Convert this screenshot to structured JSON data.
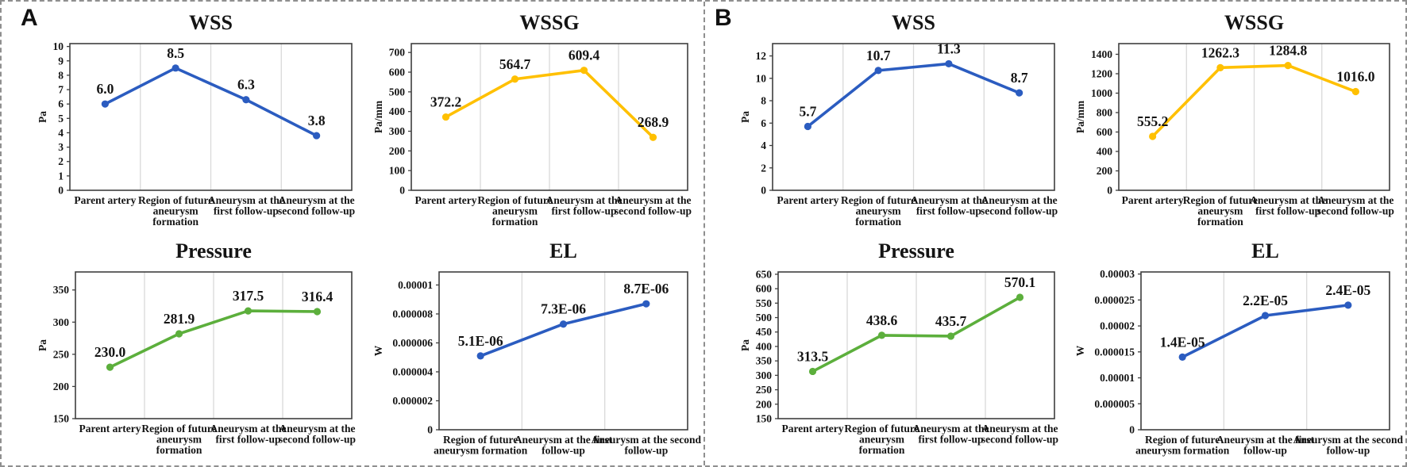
{
  "figure": {
    "panel_labels": [
      "A",
      "B"
    ],
    "border_color": "#8f8f8f",
    "background": "#ffffff",
    "frame_color": "#3f3f3f",
    "gridline_color": "#d9d9d9",
    "colors": {
      "blue": "#2B5CC0",
      "yellow": "#FFC000",
      "green": "#5CAF3C"
    }
  },
  "chart_data": [
    {
      "panel": "A",
      "type": "line",
      "title": "WSS",
      "ylabel": "Pa",
      "line_color": "#2B5CC0",
      "categories": [
        [
          "Parent artery"
        ],
        [
          "Region of future",
          "aneurysm",
          "formation"
        ],
        [
          "Aneurysm at the",
          "first follow-up"
        ],
        [
          "Aneurysm at the",
          "second follow-up"
        ]
      ],
      "values": [
        6.0,
        8.5,
        6.3,
        3.8
      ],
      "point_labels": [
        "6.0",
        "8.5",
        "6.3",
        "3.8"
      ],
      "yticks": [
        0,
        1,
        2,
        3,
        4,
        5,
        6,
        7,
        8,
        9,
        10
      ],
      "ytick_labels": [
        "0",
        "1",
        "2",
        "3",
        "4",
        "5",
        "6",
        "7",
        "8",
        "9",
        "10"
      ],
      "ylim": [
        0,
        10.2
      ],
      "grid": "vertical-category-separators",
      "legend": "none"
    },
    {
      "panel": "A",
      "type": "line",
      "title": "WSSG",
      "ylabel": "Pa/mm",
      "line_color": "#FFC000",
      "categories": [
        [
          "Parent artery"
        ],
        [
          "Region of future",
          "aneurysm",
          "formation"
        ],
        [
          "Aneurysm at the",
          "first follow-up"
        ],
        [
          "Aneurysm at the",
          "second follow-up"
        ]
      ],
      "values": [
        372.2,
        564.7,
        609.4,
        268.9
      ],
      "point_labels": [
        "372.2",
        "564.7",
        "609.4",
        "268.9"
      ],
      "yticks": [
        0,
        100,
        200,
        300,
        400,
        500,
        600,
        700
      ],
      "ytick_labels": [
        "0",
        "100",
        "200",
        "300",
        "400",
        "500",
        "600",
        "700"
      ],
      "ylim": [
        0,
        745
      ],
      "grid": "vertical-category-separators",
      "legend": "none"
    },
    {
      "panel": "A",
      "type": "line",
      "title": "Pressure",
      "ylabel": "Pa",
      "line_color": "#5CAF3C",
      "categories": [
        [
          "Parent artery"
        ],
        [
          "Region of future",
          "aneurysm",
          "formation"
        ],
        [
          "Aneurysm at the",
          "first follow-up"
        ],
        [
          "Aneurysm at the",
          "second follow-up"
        ]
      ],
      "values": [
        230.0,
        281.9,
        317.5,
        316.4
      ],
      "point_labels": [
        "230.0",
        "281.9",
        "317.5",
        "316.4"
      ],
      "yticks": [
        150,
        200,
        250,
        300,
        350
      ],
      "ytick_labels": [
        "150",
        "200",
        "250",
        "300",
        "350"
      ],
      "ylim": [
        150,
        378
      ],
      "grid": "vertical-category-separators",
      "legend": "none"
    },
    {
      "panel": "A",
      "type": "line",
      "title": "EL",
      "ylabel": "W",
      "line_color": "#2B5CC0",
      "categories": [
        [
          "Region of future",
          "aneurysm formation"
        ],
        [
          "Aneurysm at the first",
          "follow-up"
        ],
        [
          "Aneurysm at the second",
          "follow-up"
        ]
      ],
      "values": [
        5.1e-06,
        7.3e-06,
        8.7e-06
      ],
      "point_labels": [
        "5.1E-06",
        "7.3E-06",
        "8.7E-06"
      ],
      "yticks": [
        0,
        2e-06,
        4e-06,
        6e-06,
        8e-06,
        1e-05
      ],
      "ytick_labels": [
        "0",
        "0.000002",
        "0.000004",
        "0.000006",
        "0.000008",
        "0.00001"
      ],
      "ylim": [
        0,
        1.09e-05
      ],
      "grid": "vertical-category-separators",
      "legend": "none"
    },
    {
      "panel": "B",
      "type": "line",
      "title": "WSS",
      "ylabel": "Pa",
      "line_color": "#2B5CC0",
      "categories": [
        [
          "Parent artery"
        ],
        [
          "Region of future",
          "aneurysm",
          "formation"
        ],
        [
          "Aneurysm at the",
          "first follow-up"
        ],
        [
          "Aneurysm at the",
          "second follow-up"
        ]
      ],
      "values": [
        5.7,
        10.7,
        11.3,
        8.7
      ],
      "point_labels": [
        "5.7",
        "10.7",
        "11.3",
        "8.7"
      ],
      "yticks": [
        0,
        2,
        4,
        6,
        8,
        10,
        12
      ],
      "ytick_labels": [
        "0",
        "2",
        "4",
        "6",
        "8",
        "10",
        "12"
      ],
      "ylim": [
        0,
        13.1
      ],
      "grid": "vertical-category-separators",
      "legend": "none"
    },
    {
      "panel": "B",
      "type": "line",
      "title": "WSSG",
      "ylabel": "Pa/mm",
      "line_color": "#FFC000",
      "categories": [
        [
          "Parent artery"
        ],
        [
          "Region of future",
          "aneurysm",
          "formation"
        ],
        [
          "Aneurysm at the",
          "first follow-up"
        ],
        [
          "Aneurysm at the",
          "second follow-up"
        ]
      ],
      "values": [
        555.2,
        1262.3,
        1284.8,
        1016.0
      ],
      "point_labels": [
        "555.2",
        "1262.3",
        "1284.8",
        "1016.0"
      ],
      "yticks": [
        0,
        200,
        400,
        600,
        800,
        1000,
        1200,
        1400
      ],
      "ytick_labels": [
        "0",
        "200",
        "400",
        "600",
        "800",
        "1000",
        "1200",
        "1400"
      ],
      "ylim": [
        0,
        1510
      ],
      "grid": "vertical-category-separators",
      "legend": "none"
    },
    {
      "panel": "B",
      "type": "line",
      "title": "Pressure",
      "ylabel": "Pa",
      "line_color": "#5CAF3C",
      "categories": [
        [
          "Parent artery"
        ],
        [
          "Region of future",
          "aneurysm",
          "formation"
        ],
        [
          "Aneurysm at the",
          "first follow-up"
        ],
        [
          "Aneurysm at the",
          "second follow-up"
        ]
      ],
      "values": [
        313.5,
        438.6,
        435.7,
        570.1
      ],
      "point_labels": [
        "313.5",
        "438.6",
        "435.7",
        "570.1"
      ],
      "yticks": [
        150,
        200,
        250,
        300,
        350,
        400,
        450,
        500,
        550,
        600,
        650
      ],
      "ytick_labels": [
        "150",
        "200",
        "250",
        "300",
        "350",
        "400",
        "450",
        "500",
        "550",
        "600",
        "650"
      ],
      "ylim": [
        150,
        658
      ],
      "grid": "vertical-category-separators",
      "legend": "none"
    },
    {
      "panel": "B",
      "type": "line",
      "title": "EL",
      "ylabel": "W",
      "line_color": "#2B5CC0",
      "categories": [
        [
          "Region of future",
          "aneurysm formation"
        ],
        [
          "Aneurysm at the first",
          "follow-up"
        ],
        [
          "Aneurysm at the second",
          "follow-up"
        ]
      ],
      "values": [
        1.4e-05,
        2.2e-05,
        2.4e-05
      ],
      "point_labels": [
        "1.4E-05",
        "2.2E-05",
        "2.4E-05"
      ],
      "yticks": [
        0,
        5e-06,
        1e-05,
        1.5e-05,
        2e-05,
        2.5e-05,
        3e-05
      ],
      "ytick_labels": [
        "0",
        "0.000005",
        "0.00001",
        "0.000015",
        "0.00002",
        "0.000025",
        "0.00003"
      ],
      "ylim": [
        0,
        3.04e-05
      ],
      "grid": "vertical-category-separators",
      "legend": "none"
    }
  ]
}
